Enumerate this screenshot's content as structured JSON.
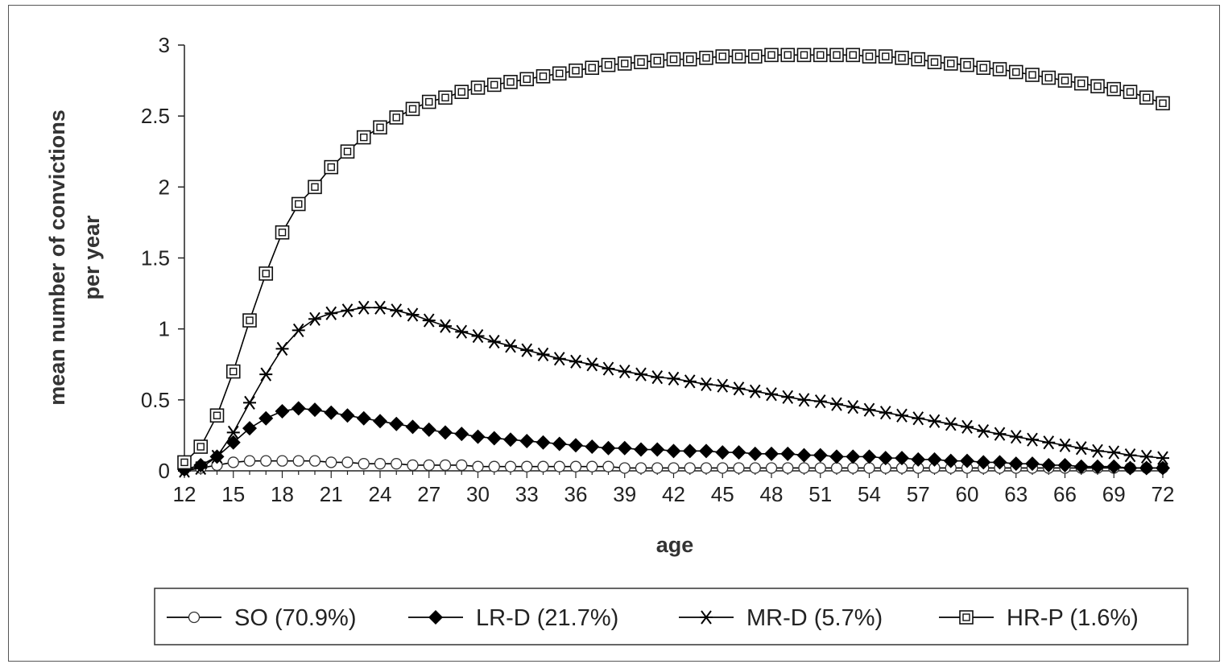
{
  "chart_data": {
    "type": "line",
    "title": "",
    "xlabel": "age",
    "ylabel_lines": [
      "mean number of convictions",
      "per year"
    ],
    "xlim": [
      12,
      72
    ],
    "ylim": [
      0,
      3
    ],
    "x_ticks": [
      12,
      15,
      18,
      21,
      24,
      27,
      30,
      33,
      36,
      39,
      42,
      45,
      48,
      51,
      54,
      57,
      60,
      63,
      66,
      69,
      72
    ],
    "y_ticks": [
      0,
      0.5,
      1,
      1.5,
      2,
      2.5,
      3
    ],
    "y_tick_labels": [
      "0",
      "0.5",
      "1",
      "1.5",
      "2",
      "2.5",
      "3"
    ],
    "grid": false,
    "legend_position": "bottom",
    "x": [
      12,
      13,
      14,
      15,
      16,
      17,
      18,
      19,
      20,
      21,
      22,
      23,
      24,
      25,
      26,
      27,
      28,
      29,
      30,
      31,
      32,
      33,
      34,
      35,
      36,
      37,
      38,
      39,
      40,
      41,
      42,
      43,
      44,
      45,
      46,
      47,
      48,
      49,
      50,
      51,
      52,
      53,
      54,
      55,
      56,
      57,
      58,
      59,
      60,
      61,
      62,
      63,
      64,
      65,
      66,
      67,
      68,
      69,
      70,
      71,
      72
    ],
    "series": [
      {
        "name": "SO (70.9%)",
        "marker": "circle",
        "values": [
          0.01,
          0.02,
          0.04,
          0.06,
          0.07,
          0.07,
          0.07,
          0.07,
          0.07,
          0.06,
          0.06,
          0.05,
          0.05,
          0.05,
          0.04,
          0.04,
          0.04,
          0.04,
          0.03,
          0.03,
          0.03,
          0.03,
          0.03,
          0.03,
          0.03,
          0.03,
          0.03,
          0.02,
          0.02,
          0.02,
          0.02,
          0.02,
          0.02,
          0.02,
          0.02,
          0.02,
          0.02,
          0.02,
          0.02,
          0.02,
          0.02,
          0.02,
          0.02,
          0.02,
          0.02,
          0.02,
          0.02,
          0.02,
          0.02,
          0.02,
          0.02,
          0.02,
          0.02,
          0.02,
          0.02,
          0.02,
          0.02,
          0.02,
          0.02,
          0.02,
          0.02
        ]
      },
      {
        "name": "LR-D (21.7%)",
        "marker": "diamond",
        "values": [
          0.01,
          0.04,
          0.1,
          0.2,
          0.3,
          0.37,
          0.42,
          0.44,
          0.43,
          0.41,
          0.39,
          0.37,
          0.35,
          0.33,
          0.31,
          0.29,
          0.27,
          0.26,
          0.24,
          0.23,
          0.22,
          0.21,
          0.2,
          0.19,
          0.18,
          0.17,
          0.16,
          0.16,
          0.15,
          0.15,
          0.14,
          0.14,
          0.14,
          0.13,
          0.13,
          0.12,
          0.12,
          0.12,
          0.11,
          0.11,
          0.1,
          0.1,
          0.1,
          0.09,
          0.09,
          0.08,
          0.08,
          0.07,
          0.07,
          0.06,
          0.06,
          0.05,
          0.05,
          0.04,
          0.04,
          0.03,
          0.03,
          0.03,
          0.02,
          0.02,
          0.02
        ]
      },
      {
        "name": "MR-D (5.7%)",
        "marker": "asterisk",
        "values": [
          0.0,
          0.02,
          0.1,
          0.27,
          0.48,
          0.68,
          0.86,
          0.99,
          1.07,
          1.11,
          1.13,
          1.15,
          1.15,
          1.13,
          1.1,
          1.06,
          1.02,
          0.98,
          0.95,
          0.91,
          0.88,
          0.85,
          0.82,
          0.79,
          0.77,
          0.75,
          0.72,
          0.7,
          0.68,
          0.66,
          0.65,
          0.63,
          0.61,
          0.6,
          0.58,
          0.56,
          0.54,
          0.52,
          0.5,
          0.49,
          0.47,
          0.45,
          0.43,
          0.41,
          0.39,
          0.37,
          0.35,
          0.33,
          0.31,
          0.28,
          0.26,
          0.24,
          0.22,
          0.2,
          0.18,
          0.16,
          0.14,
          0.13,
          0.11,
          0.1,
          0.09
        ]
      },
      {
        "name": "HR-P (1.6%)",
        "marker": "square",
        "values": [
          0.06,
          0.17,
          0.39,
          0.7,
          1.06,
          1.39,
          1.68,
          1.88,
          2.0,
          2.14,
          2.25,
          2.35,
          2.42,
          2.49,
          2.55,
          2.6,
          2.63,
          2.67,
          2.7,
          2.72,
          2.74,
          2.76,
          2.78,
          2.8,
          2.82,
          2.84,
          2.86,
          2.87,
          2.88,
          2.89,
          2.9,
          2.9,
          2.91,
          2.92,
          2.92,
          2.92,
          2.93,
          2.93,
          2.93,
          2.93,
          2.93,
          2.93,
          2.92,
          2.92,
          2.91,
          2.9,
          2.88,
          2.87,
          2.86,
          2.84,
          2.83,
          2.81,
          2.79,
          2.77,
          2.75,
          2.73,
          2.71,
          2.69,
          2.67,
          2.63,
          2.59
        ]
      }
    ]
  }
}
